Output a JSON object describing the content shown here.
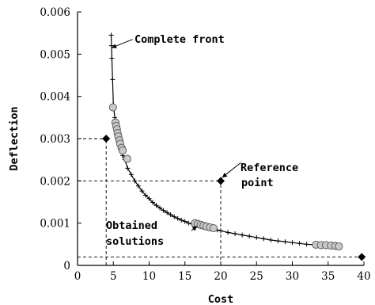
{
  "chart_data": {
    "type": "scatter",
    "xlabel": "Cost",
    "ylabel": "Deflection",
    "xlim": [
      0,
      40
    ],
    "ylim": [
      0,
      0.006
    ],
    "xticks": [
      0,
      5,
      10,
      15,
      20,
      25,
      30,
      35,
      40
    ],
    "xtick_labels": [
      "0",
      "5",
      "10",
      "15",
      "20",
      "25",
      "30",
      "35",
      "40"
    ],
    "yticks": [
      0,
      0.001,
      0.002,
      0.003,
      0.004,
      0.005,
      0.006
    ],
    "ytick_labels": [
      "0",
      "0.001",
      "0.002",
      "0.003",
      "0.004",
      "0.005",
      "0.006"
    ],
    "grid": false,
    "series": [
      {
        "marker": "plus",
        "color": "#000000",
        "points": [
          [
            4.7,
            0.00545
          ],
          [
            4.75,
            0.0052
          ],
          [
            4.8,
            0.0049
          ],
          [
            4.9,
            0.0044
          ],
          [
            5.0,
            0.0038
          ],
          [
            5.2,
            0.0035
          ],
          [
            5.4,
            0.0033
          ],
          [
            5.6,
            0.0031
          ],
          [
            5.8,
            0.0029
          ],
          [
            6.0,
            0.0028
          ],
          [
            6.3,
            0.0026
          ],
          [
            6.6,
            0.0025
          ],
          [
            7.0,
            0.0023
          ],
          [
            7.5,
            0.00215
          ],
          [
            8.0,
            0.002
          ],
          [
            8.5,
            0.00188
          ],
          [
            9.0,
            0.00176
          ],
          [
            9.5,
            0.00166
          ],
          [
            10.0,
            0.00158
          ],
          [
            10.5,
            0.00149
          ],
          [
            11.0,
            0.00142
          ],
          [
            11.5,
            0.00136
          ],
          [
            12.0,
            0.0013
          ],
          [
            12.5,
            0.00125
          ],
          [
            13.0,
            0.0012
          ],
          [
            13.5,
            0.00115
          ],
          [
            14.0,
            0.00111
          ],
          [
            14.5,
            0.00107
          ],
          [
            15.0,
            0.00104
          ],
          [
            15.5,
            0.001
          ],
          [
            16.0,
            0.00098
          ],
          [
            16.5,
            0.00096
          ],
          [
            17.0,
            0.00094
          ],
          [
            17.5,
            0.00092
          ],
          [
            18.0,
            0.0009
          ],
          [
            18.5,
            0.00088
          ],
          [
            19.0,
            0.00086
          ],
          [
            19.5,
            0.00084
          ],
          [
            20.0,
            0.00082
          ],
          [
            21.0,
            0.00078
          ],
          [
            22.0,
            0.00075
          ],
          [
            23.0,
            0.00072
          ],
          [
            24.0,
            0.00069
          ],
          [
            25.0,
            0.00066
          ],
          [
            26.0,
            0.00063
          ],
          [
            27.0,
            0.0006
          ],
          [
            28.0,
            0.00058
          ],
          [
            29.0,
            0.00056
          ],
          [
            30.0,
            0.00054
          ],
          [
            31.0,
            0.00052
          ],
          [
            32.0,
            0.0005
          ],
          [
            33.0,
            0.00049
          ],
          [
            34.0,
            0.00048
          ],
          [
            35.0,
            0.00047
          ],
          [
            36.0,
            0.00046
          ],
          [
            36.6,
            0.00045
          ]
        ]
      },
      {
        "marker": "circle",
        "color": "#c8c8c8",
        "points": [
          [
            4.95,
            0.00374
          ],
          [
            5.3,
            0.00338
          ],
          [
            5.4,
            0.0033
          ],
          [
            5.5,
            0.00322
          ],
          [
            5.6,
            0.00313
          ],
          [
            5.7,
            0.00305
          ],
          [
            5.85,
            0.00296
          ],
          [
            5.95,
            0.00288
          ],
          [
            6.15,
            0.00278
          ],
          [
            6.3,
            0.00272
          ],
          [
            6.95,
            0.00252
          ],
          [
            16.4,
            0.001
          ],
          [
            16.8,
            0.00098
          ],
          [
            17.2,
            0.00096
          ],
          [
            17.6,
            0.00094
          ],
          [
            18.0,
            0.00092
          ],
          [
            18.5,
            0.0009
          ],
          [
            19.0,
            0.00088
          ],
          [
            33.3,
            0.00049
          ],
          [
            34.0,
            0.00048
          ],
          [
            34.7,
            0.00048
          ],
          [
            35.4,
            0.00047
          ],
          [
            36.0,
            0.00046
          ],
          [
            36.5,
            0.00045
          ]
        ]
      },
      {
        "marker": "diamond",
        "color": "#000000",
        "points": [
          [
            4.0,
            0.003
          ],
          [
            20.0,
            0.002
          ],
          [
            39.7,
            0.0002
          ]
        ]
      }
    ],
    "dashed_lines": [
      {
        "x1": 0,
        "y1": 0.003,
        "x2": 4.0,
        "y2": 0.003
      },
      {
        "x1": 4.0,
        "y1": 0,
        "x2": 4.0,
        "y2": 0.003
      },
      {
        "x1": 0,
        "y1": 0.002,
        "x2": 20.0,
        "y2": 0.002
      },
      {
        "x1": 20.0,
        "y1": 0,
        "x2": 20.0,
        "y2": 0.002
      },
      {
        "x1": 0,
        "y1": 0.0002,
        "x2": 39.7,
        "y2": 0.0002
      }
    ],
    "annotations": [
      {
        "name": "complete-front",
        "lines": [
          "Complete front"
        ],
        "from": [
          7.7,
          0.00535
        ],
        "to": [
          4.75,
          0.00515
        ]
      },
      {
        "name": "reference-point",
        "lines": [
          "Reference",
          "point"
        ],
        "from": [
          22.8,
          0.00243
        ],
        "to": [
          20.2,
          0.00208
        ]
      },
      {
        "name": "obtained-solutions",
        "lines": [
          "Obtained",
          "solutions"
        ],
        "from": [
          15.9,
          0.00082
        ],
        "to": [
          16.7,
          0.00093
        ]
      }
    ]
  }
}
